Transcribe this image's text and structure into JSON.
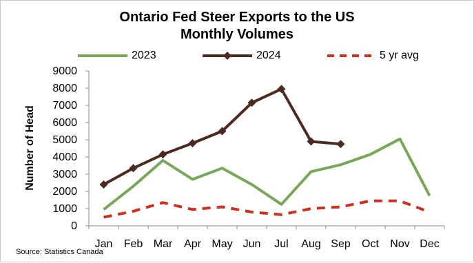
{
  "chart_data": {
    "type": "line",
    "title_line1": "Ontario Fed Steer Exports to the US",
    "title_line2": "Monthly Volumes",
    "xlabel": "",
    "ylabel": "Number of Head",
    "ylim": [
      0,
      9000
    ],
    "yticks": [
      "0",
      "1000",
      "2000",
      "3000",
      "4000",
      "5000",
      "6000",
      "7000",
      "8000",
      "9000"
    ],
    "categories": [
      "Jan",
      "Feb",
      "Mar",
      "Apr",
      "May",
      "Jun",
      "Jul",
      "Aug",
      "Sep",
      "Oct",
      "Nov",
      "Dec"
    ],
    "legend_position": "top",
    "grid": false,
    "series": [
      {
        "name": "2023",
        "color": "#77a85a",
        "style": "solid",
        "marker": "none",
        "values": [
          950,
          2300,
          3800,
          2700,
          3350,
          2400,
          1250,
          3150,
          3550,
          4150,
          5050,
          1750
        ]
      },
      {
        "name": "2024",
        "color": "#4b2a22",
        "style": "solid",
        "marker": "diamond",
        "values": [
          2400,
          3350,
          4150,
          4800,
          5500,
          7150,
          7950,
          4900,
          4750,
          null,
          null,
          null
        ]
      },
      {
        "name": "5 yr avg",
        "color": "#c8321e",
        "style": "dashed",
        "marker": "none",
        "values": [
          500,
          850,
          1350,
          950,
          1100,
          800,
          650,
          1000,
          1100,
          1450,
          1450,
          800
        ]
      }
    ],
    "source": "Source: Statistics Canada"
  }
}
